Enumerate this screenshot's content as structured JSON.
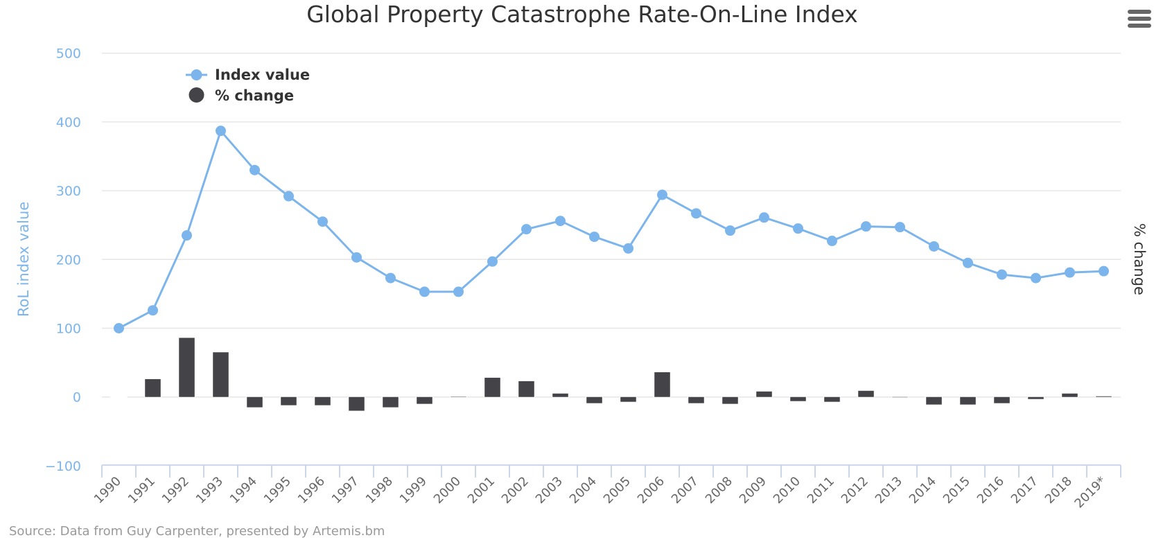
{
  "chart_data": {
    "type": "line+bar",
    "title": "Global Property Catastrophe Rate-On-Line Index",
    "credits": "Source: Data from Guy Carpenter, presented by Artemis.bm",
    "categories": [
      "1990",
      "1991",
      "1992",
      "1993",
      "1994",
      "1995",
      "1996",
      "1997",
      "1998",
      "1999",
      "2000",
      "2001",
      "2002",
      "2003",
      "2004",
      "2005",
      "2006",
      "2007",
      "2008",
      "2009",
      "2010",
      "2011",
      "2012",
      "2013",
      "2014",
      "2015",
      "2016",
      "2017",
      "2018",
      "2019*"
    ],
    "ylabel": "RoL index value",
    "ylabel_right": "% change",
    "ylim": [
      -100,
      500
    ],
    "yticks": [
      -100,
      0,
      100,
      200,
      300,
      400,
      500
    ],
    "grid": true,
    "legend_position": "top-left",
    "series": [
      {
        "name": "Index value",
        "type": "line",
        "color": "#7cb5ec",
        "values": [
          100,
          126,
          235,
          387,
          330,
          292,
          255,
          203,
          173,
          153,
          153,
          197,
          244,
          256,
          233,
          216,
          294,
          267,
          242,
          261,
          245,
          227,
          248,
          247,
          219,
          195,
          178,
          173,
          181,
          183
        ]
      },
      {
        "name": "% change",
        "type": "bar",
        "color": "#434348",
        "values": [
          0,
          26,
          86,
          65,
          -15,
          -12,
          -12,
          -20,
          -15,
          -10,
          0.5,
          28,
          23,
          5,
          -9,
          -7,
          36,
          -9,
          -10,
          8,
          -6,
          -7,
          9,
          -0.5,
          -11,
          -11,
          -9,
          -3,
          5,
          1
        ]
      }
    ]
  },
  "menu": {
    "icon": "hamburger-menu-icon"
  }
}
